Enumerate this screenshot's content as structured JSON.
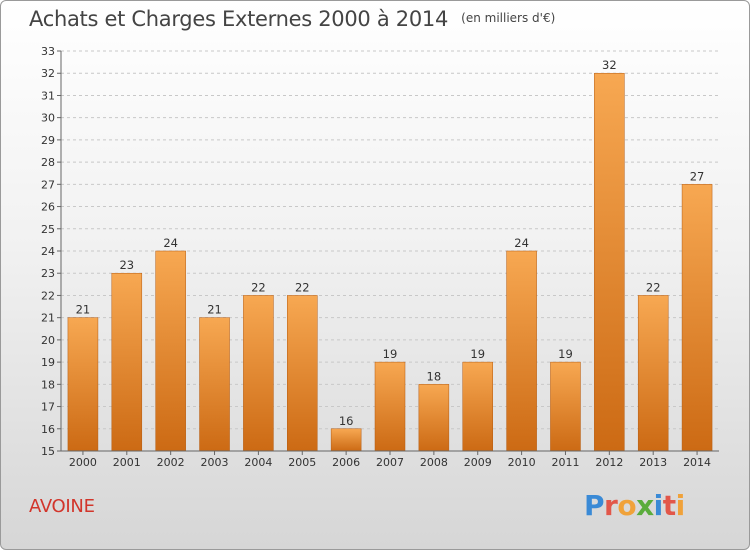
{
  "header": {
    "title": "Achats et Charges Externes 2000 à 2014",
    "subtitle": "(en milliers d'€)"
  },
  "footer": {
    "commune": "AVOINE",
    "logo": "Proxiti"
  },
  "colors": {
    "bar_light": "#f7a852",
    "bar_dark": "#cc6a14",
    "commune_text": "#d2352b"
  },
  "chart_data": {
    "type": "bar",
    "title": "Achats et Charges Externes 2000 à 2014",
    "subtitle": "(en milliers d'€)",
    "xlabel": "",
    "ylabel": "",
    "categories": [
      "2000",
      "2001",
      "2002",
      "2003",
      "2004",
      "2005",
      "2006",
      "2007",
      "2008",
      "2009",
      "2010",
      "2011",
      "2012",
      "2013",
      "2014"
    ],
    "values": [
      21,
      23,
      24,
      21,
      22,
      22,
      16,
      19,
      18,
      19,
      24,
      19,
      32,
      22,
      27
    ],
    "ylim": [
      15,
      33
    ],
    "yticks": [
      15,
      16,
      17,
      18,
      19,
      20,
      21,
      22,
      23,
      24,
      25,
      26,
      27,
      28,
      29,
      30,
      31,
      32,
      33
    ],
    "grid": true,
    "legend": "none"
  }
}
